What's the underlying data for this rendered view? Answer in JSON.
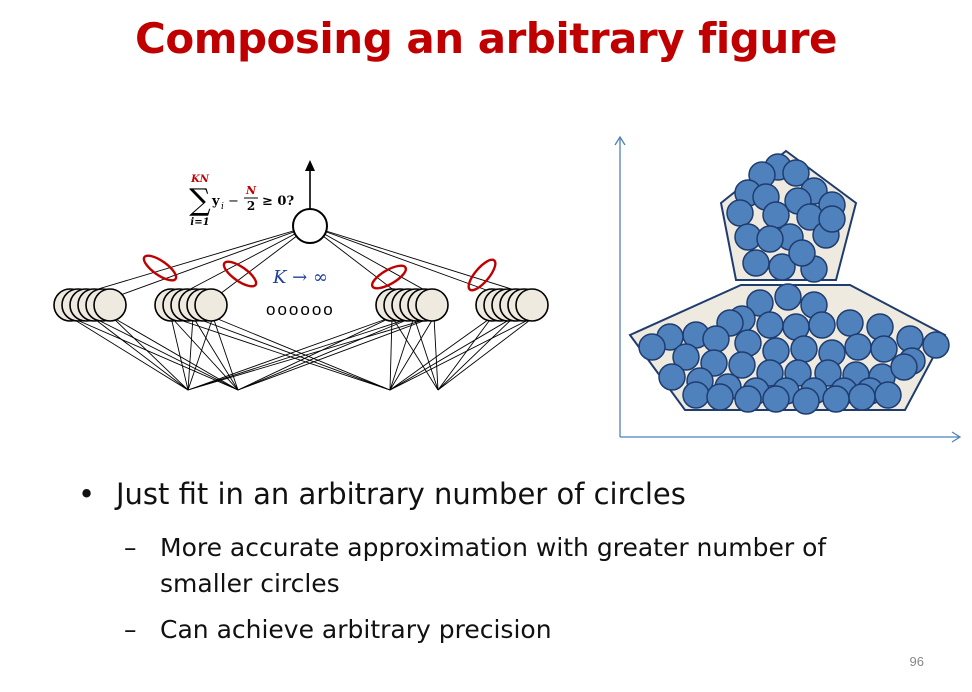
{
  "title": "Composing an arbitrary figure",
  "network": {
    "formula": {
      "sum_top": "KN",
      "sum_symbol": "∑",
      "sum_bottom": "i=1",
      "term": "y",
      "term_sub": "i",
      "minus": "−",
      "frac_num": "N",
      "frac_den": "2",
      "comparison": "≥ 0?"
    },
    "k_label": "K → ∞",
    "dots": "oooooo",
    "colors": {
      "highlight": "#c00000",
      "neuron_fill": "#efeadf",
      "k_label": "#1f3f99"
    }
  },
  "figure": {
    "colors": {
      "axis": "#4f81bd",
      "circle_fill": "#4f81bd",
      "circle_stroke": "#1f3c6e",
      "shape_fill": "#efeadf"
    }
  },
  "bullets": {
    "marker": "•",
    "dash": "–",
    "main": "Just fit in an arbitrary number of circles",
    "sub": [
      {
        "line1": "More accurate approximation with greater number of",
        "line2": "smaller circles"
      },
      {
        "line1": "Can achieve arbitrary precision"
      }
    ]
  },
  "page_number": "96"
}
